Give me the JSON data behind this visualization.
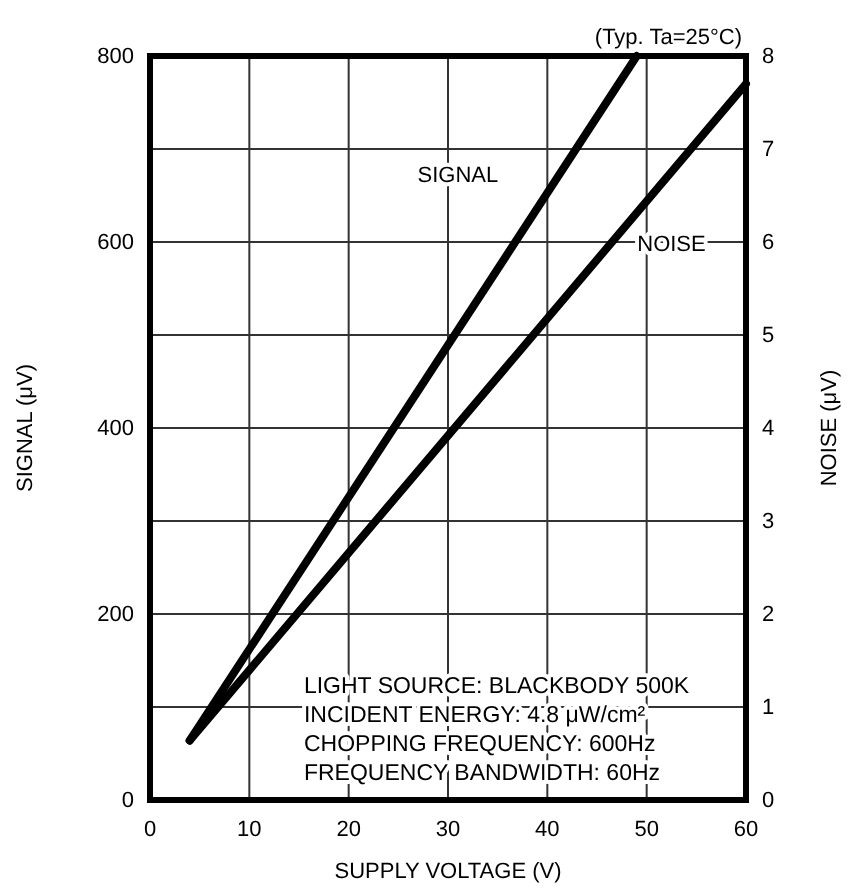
{
  "chart_data": {
    "type": "line",
    "xlabel": "SUPPLY VOLTAGE (V)",
    "ylabel": "SIGNAL (μV)",
    "y2label": "NOISE (μV)",
    "annotations": [
      "(Typ. Ta=25°C)",
      "LIGHT SOURCE: BLACKBODY 500K",
      "INCIDENT ENERGY: 4.8 μW/cm²",
      "CHOPPING FREQUENCY: 600Hz",
      "FREQUENCY BANDWIDTH: 60Hz"
    ],
    "xlim": [
      0,
      60
    ],
    "xticks": [
      0,
      10,
      20,
      30,
      40,
      50,
      60
    ],
    "ylim": [
      0,
      800
    ],
    "yticks": [
      0,
      200,
      400,
      600,
      800
    ],
    "y2lim": [
      0,
      8
    ],
    "y2ticks": [
      0,
      1,
      2,
      3,
      4,
      5,
      6,
      7,
      8
    ],
    "grid": true,
    "marker": "none",
    "line_style": "solid",
    "series": [
      {
        "name": "SIGNAL",
        "color": "#000000",
        "x": [
          4,
          49
        ],
        "values": [
          64,
          800
        ]
      },
      {
        "name": "NOISE",
        "color": "#000000",
        "axis": "y2",
        "x": [
          4,
          60
        ],
        "values": [
          0.64,
          7.7
        ]
      }
    ]
  }
}
